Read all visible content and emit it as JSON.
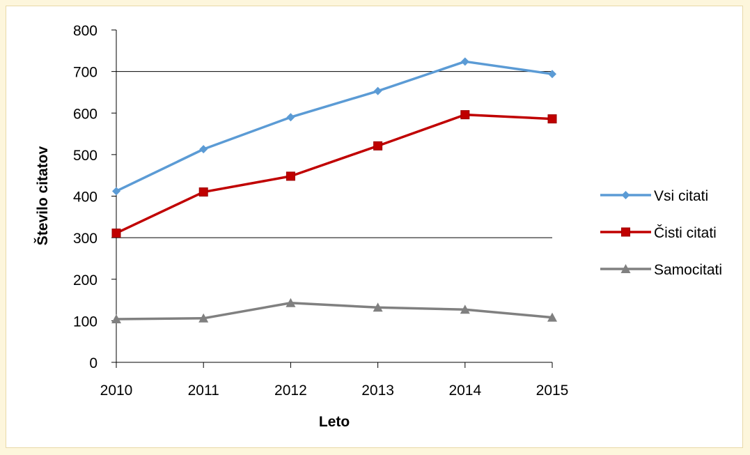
{
  "chart_data": {
    "type": "line",
    "x": [
      "2010",
      "2011",
      "2012",
      "2013",
      "2014",
      "2015"
    ],
    "xlabel": "Leto",
    "ylabel": "Število citatov",
    "ylim": [
      0,
      800
    ],
    "yticks": [
      0,
      100,
      200,
      300,
      400,
      500,
      600,
      700,
      800
    ],
    "grid": "horizontal gridlines at 300 and 700 only",
    "legend": "right",
    "series": [
      {
        "name": "Vsi citati",
        "values": [
          412,
          513,
          590,
          653,
          724,
          694
        ],
        "color": "#5b9bd5",
        "marker": "diamond"
      },
      {
        "name": "Čisti citati",
        "values": [
          311,
          410,
          448,
          521,
          596,
          586
        ],
        "color": "#c00000",
        "marker": "square"
      },
      {
        "name": "Samocitati",
        "values": [
          104,
          106,
          143,
          132,
          127,
          108
        ],
        "color": "#808080",
        "marker": "triangle"
      }
    ]
  }
}
